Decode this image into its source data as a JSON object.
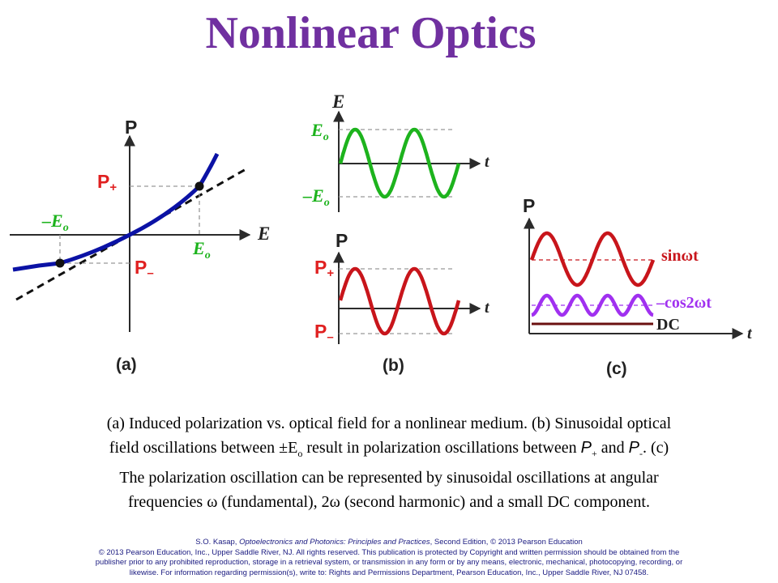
{
  "title": "Nonlinear Optics",
  "colors": {
    "title": "#7030A0",
    "curve": "#0B12A5",
    "label_red": "#E02020",
    "wave_green": "#1DB31D",
    "wave_red": "#C8151B",
    "wave_purple": "#A030F0",
    "dc_line": "#6B1010",
    "ebar": "#2B2B2B"
  },
  "panel_a": {
    "p_axis": "P",
    "e_axis": "E",
    "p_plus_main": "P",
    "p_plus_sub": "+",
    "p_minus_main": "P",
    "p_minus_sub": "–",
    "neg_eo": "–E",
    "neg_eo_sub": "o",
    "eo": "E",
    "eo_sub": "o",
    "caption": "(a)"
  },
  "panel_b": {
    "e_axis": "E",
    "t_axis": "t",
    "eo": "E",
    "eo_sub": "o",
    "neg_eo": "–E",
    "neg_eo_sub": "o",
    "p_axis": "P",
    "t_axis2": "t",
    "p_plus_main": "P",
    "p_plus_sub": "+",
    "p_minus_main": "P",
    "p_minus_sub": "–",
    "caption": "(b)"
  },
  "panel_c": {
    "p_axis": "P",
    "t_axis": "t",
    "sin_label": "sinωt",
    "cos_label": "–cos2ωt",
    "dc_label": "DC",
    "caption": "(c)"
  },
  "caption": {
    "l1": "(a) Induced polarization vs. optical field for a nonlinear medium. (b) Sinusoidal optical",
    "l2a": "field oscillations between ±E",
    "l2sub": "o",
    "l2b": " result in polarization oscillations between ",
    "l2p1": "P",
    "l2p1sub": "+",
    "l2c": " and ",
    "l2p2": "P",
    "l2p2sub": "-",
    "l2d": ".  (c)",
    "l3": "The polarization oscillation can be represented by sinusoidal oscillations at angular",
    "l4": "frequencies ω  (fundamental), 2ω  (second harmonic) and a small DC component."
  },
  "credit": {
    "l1a": "S.O. Kasap, ",
    "l1b": "Optoelectronics and Photonics: Principles and Practices",
    "l1c": ", Second Edition, © 2013 Pearson Education",
    "l2": "© 2013 Pearson Education, Inc., Upper Saddle River, NJ. All rights reserved. This publication is protected by Copyright and written permission should be obtained from the",
    "l3": "publisher prior to any prohibited reproduction, storage in a retrieval system, or transmission in any form or by any means, electronic, mechanical, photocopying, recording, or",
    "l4": "likewise. For information regarding permission(s), write to: Rights and Permissions Department, Pearson Education, Inc., Upper Saddle River, NJ 07458."
  }
}
